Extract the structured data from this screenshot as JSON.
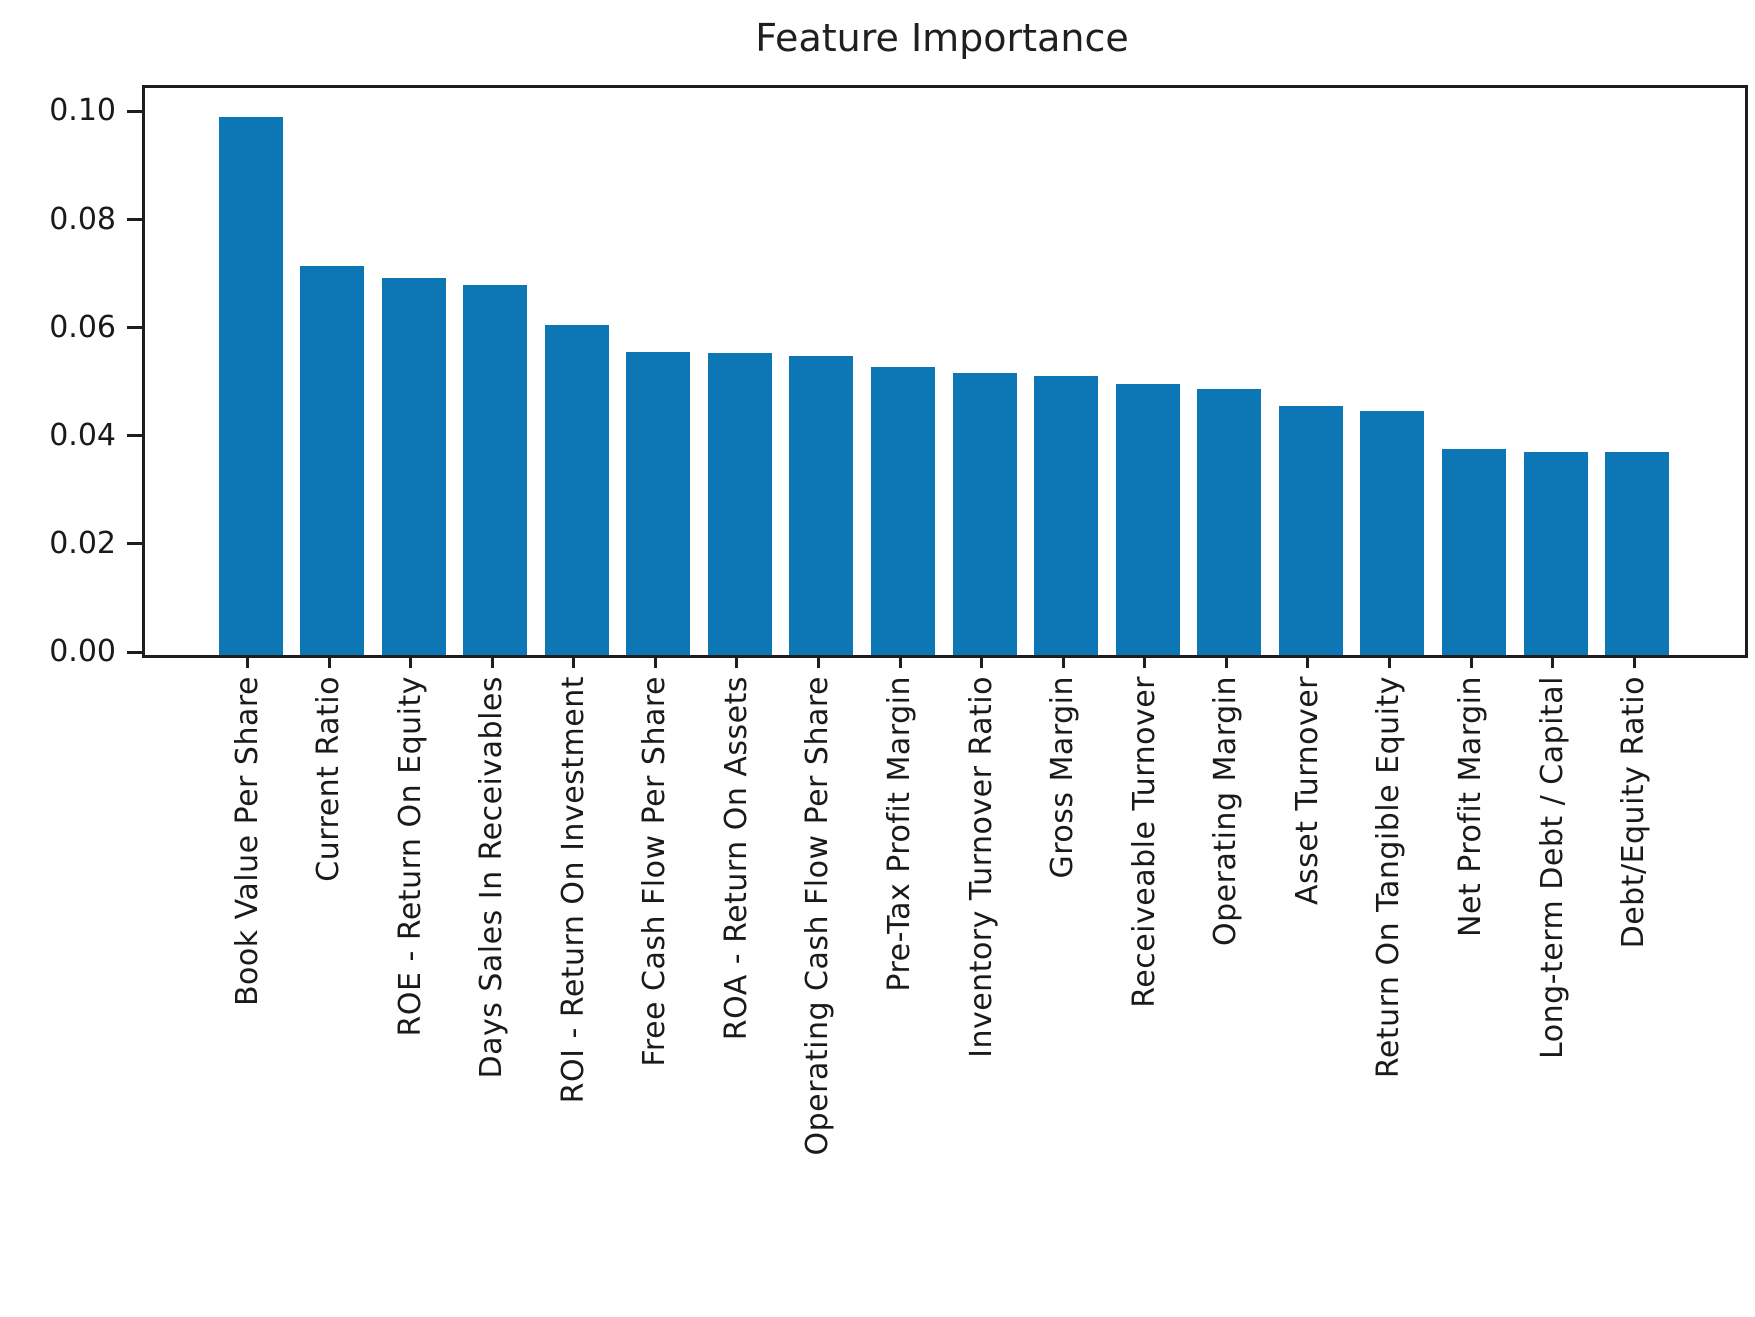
{
  "title": "Feature Importance",
  "chart_data": {
    "type": "bar",
    "title": "Feature Importance",
    "xlabel": "",
    "ylabel": "",
    "categories": [
      "Book Value Per Share",
      "Current Ratio",
      "ROE - Return On Equity",
      "Days Sales In Receivables",
      "ROI - Return On Investment",
      "Free Cash Flow Per Share",
      "ROA - Return On Assets",
      "Operating Cash Flow Per Share",
      "Pre-Tax Profit Margin",
      "Inventory Turnover Ratio",
      "Gross Margin",
      "Receiveable Turnover",
      "Operating Margin",
      "Asset Turnover",
      "Return On Tangible Equity",
      "Net Profit Margin",
      "Long-term Debt / Capital",
      "Debt/Equity Ratio"
    ],
    "values": [
      0.0995,
      0.072,
      0.0697,
      0.0684,
      0.061,
      0.056,
      0.0558,
      0.0553,
      0.0532,
      0.0521,
      0.0516,
      0.0502,
      0.0493,
      0.0461,
      0.0452,
      0.0381,
      0.0375,
      0.0376
    ],
    "yticks": [
      0.0,
      0.02,
      0.04,
      0.06,
      0.08,
      0.1
    ],
    "ytick_labels": [
      "0.00",
      "0.02",
      "0.04",
      "0.06",
      "0.08",
      "0.10"
    ],
    "ylim": [
      0,
      0.1049
    ],
    "xtick_rotation_deg": 90,
    "grid": false,
    "legend_position": "none",
    "bar_color": "#0d76b5",
    "axis_color": "#1d1d1d",
    "text_color": "#1a1a1a",
    "background_color": "#ffffff"
  }
}
